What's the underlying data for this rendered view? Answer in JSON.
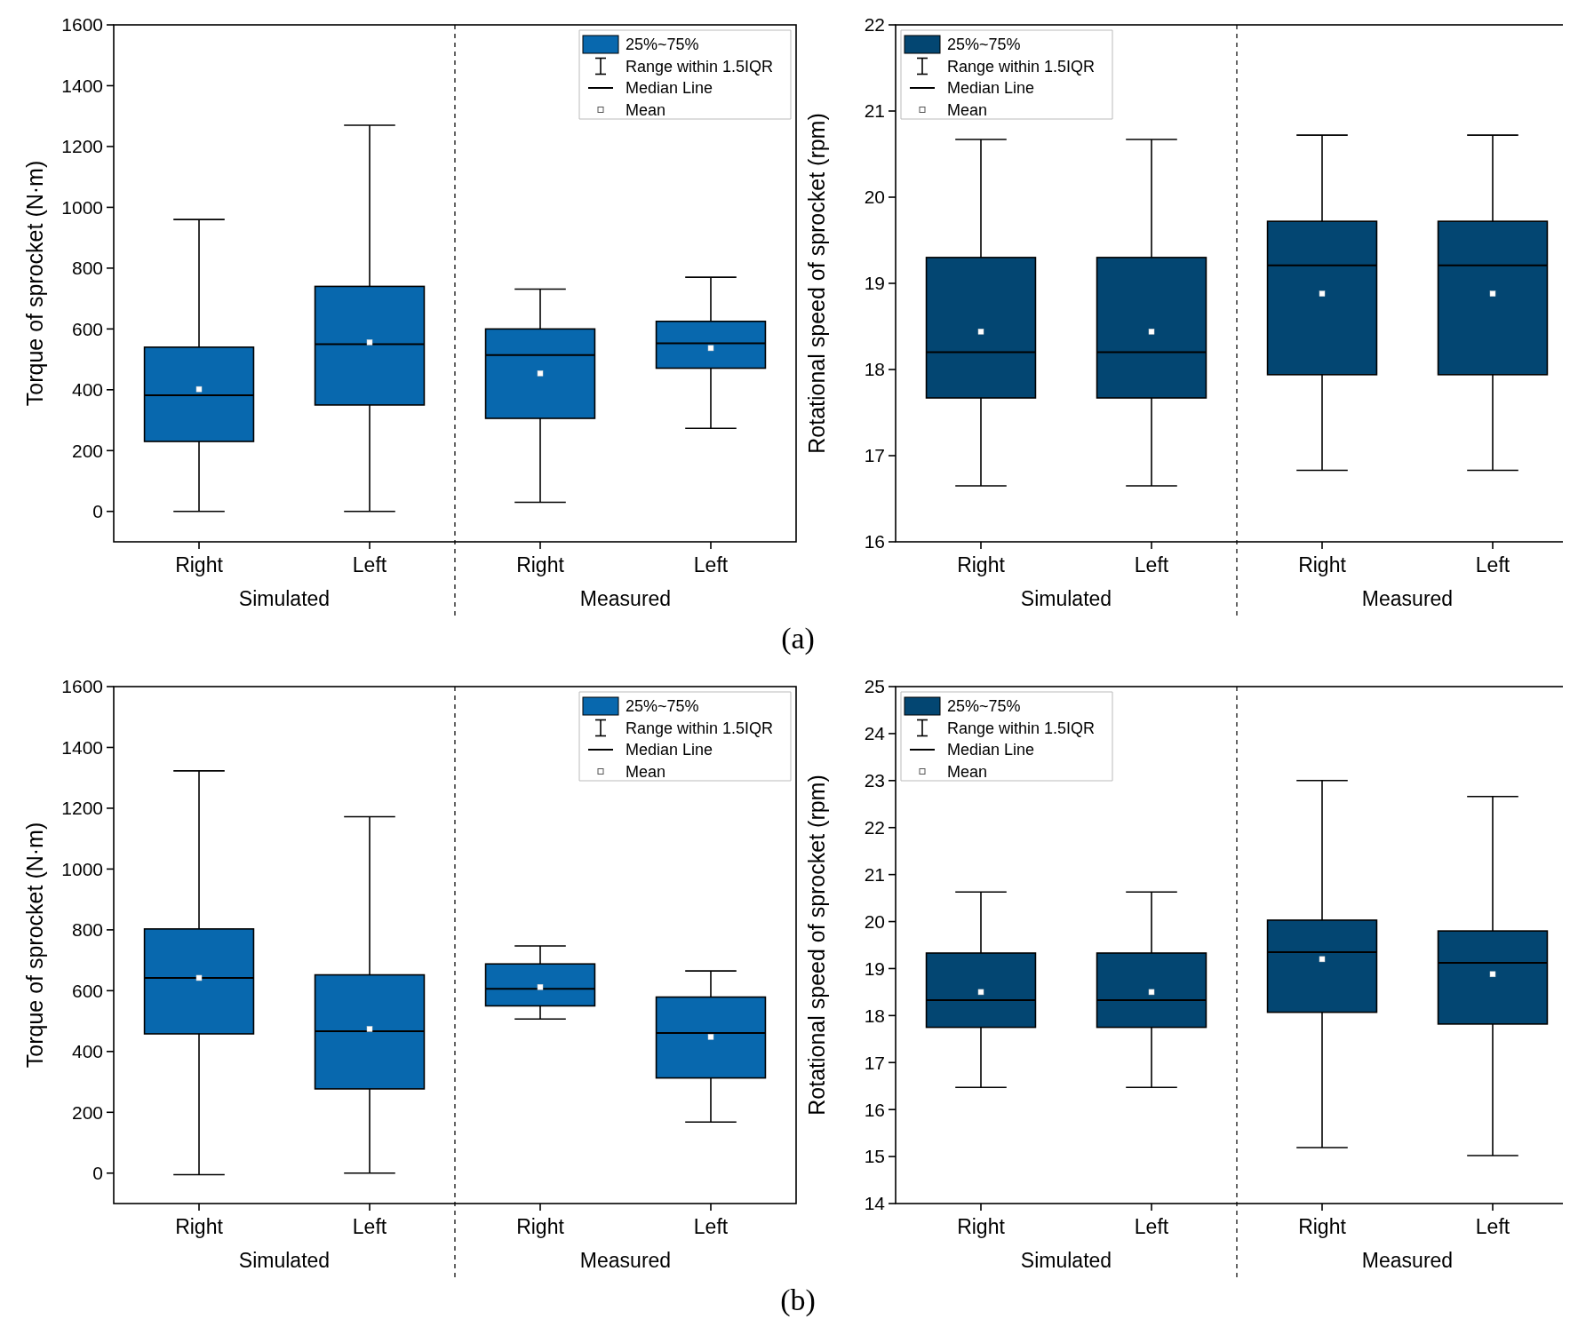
{
  "chart_data": [
    {
      "type": "box",
      "ylabel": "Torque of sprocket (N·m)",
      "categories": [
        "Right",
        "Left",
        "Right",
        "Left"
      ],
      "ylim": [
        -100,
        1600
      ],
      "yticks": [
        0,
        200,
        400,
        600,
        800,
        1000,
        1200,
        1400,
        1600
      ],
      "legend": "top right",
      "marker": "square",
      "annotations": [
        "Simulated",
        "Measured",
        "Range within 1.5IQR",
        "Median Line",
        "Mean"
      ],
      "series": [
        {
          "name": "25%~75%",
          "color": "#0868ae",
          "boxes": [
            {
              "low": 0,
              "q1": 230,
              "median": 382,
              "q3": 540,
              "high": 960,
              "mean": 402
            },
            {
              "low": 0,
              "q1": 350,
              "median": 550,
              "q3": 740,
              "high": 1270,
              "mean": 556
            },
            {
              "low": 30,
              "q1": 306,
              "median": 514,
              "q3": 600,
              "high": 731,
              "mean": 454
            },
            {
              "low": 273,
              "q1": 471,
              "median": 553,
              "q3": 625,
              "high": 770,
              "mean": 537
            }
          ]
        }
      ]
    },
    {
      "type": "box",
      "ylabel": "Rotational speed of sprocket (rpm)",
      "categories": [
        "Right",
        "Left",
        "Right",
        "Left"
      ],
      "ylim": [
        16,
        22
      ],
      "yticks": [
        16,
        17,
        18,
        19,
        20,
        21,
        22
      ],
      "legend": "top left",
      "marker": "square",
      "annotations": [
        "Simulated",
        "Measured",
        "Range within 1.5IQR",
        "Median Line",
        "Mean",
        "(a)"
      ],
      "series": [
        {
          "name": "25%~75%",
          "color": "#034672",
          "boxes": [
            {
              "low": 16.65,
              "q1": 17.67,
              "median": 18.2,
              "q3": 19.3,
              "high": 20.67,
              "mean": 18.44
            },
            {
              "low": 16.65,
              "q1": 17.67,
              "median": 18.2,
              "q3": 19.3,
              "high": 20.67,
              "mean": 18.44
            },
            {
              "low": 16.83,
              "q1": 17.94,
              "median": 19.21,
              "q3": 19.72,
              "high": 20.72,
              "mean": 18.88
            },
            {
              "low": 16.83,
              "q1": 17.94,
              "median": 19.21,
              "q3": 19.72,
              "high": 20.72,
              "mean": 18.88
            }
          ]
        }
      ]
    },
    {
      "type": "box",
      "ylabel": "Torque of sprocket (N·m)",
      "categories": [
        "Right",
        "Left",
        "Right",
        "Left"
      ],
      "ylim": [
        -100,
        1600
      ],
      "yticks": [
        0,
        200,
        400,
        600,
        800,
        1000,
        1200,
        1400,
        1600
      ],
      "legend": "top right",
      "marker": "square",
      "annotations": [
        "Simulated",
        "Measured",
        "Range within 1.5IQR",
        "Median Line",
        "Mean"
      ],
      "series": [
        {
          "name": "25%~75%",
          "color": "#0868ae",
          "boxes": [
            {
              "low": -5,
              "q1": 458,
              "median": 642,
              "q3": 803,
              "high": 1323,
              "mean": 642
            },
            {
              "low": 0,
              "q1": 277,
              "median": 467,
              "q3": 652,
              "high": 1172,
              "mean": 474
            },
            {
              "low": 507,
              "q1": 550,
              "median": 606,
              "q3": 688,
              "high": 747,
              "mean": 612
            },
            {
              "low": 168,
              "q1": 313,
              "median": 461,
              "q3": 579,
              "high": 665,
              "mean": 448
            }
          ]
        }
      ]
    },
    {
      "type": "box",
      "ylabel": "Rotational speed of sprocket (rpm)",
      "categories": [
        "Right",
        "Left",
        "Right",
        "Left"
      ],
      "ylim": [
        14,
        25
      ],
      "yticks": [
        14,
        15,
        16,
        17,
        18,
        19,
        20,
        21,
        22,
        23,
        24,
        25
      ],
      "legend": "top left",
      "marker": "square",
      "annotations": [
        "Simulated",
        "Measured",
        "Range within 1.5IQR",
        "Median Line",
        "Mean",
        "(b)"
      ],
      "series": [
        {
          "name": "25%~75%",
          "color": "#034672",
          "boxes": [
            {
              "low": 16.47,
              "q1": 17.75,
              "median": 18.33,
              "q3": 19.33,
              "high": 20.63,
              "mean": 18.5
            },
            {
              "low": 16.47,
              "q1": 17.75,
              "median": 18.33,
              "q3": 19.33,
              "high": 20.63,
              "mean": 18.5
            },
            {
              "low": 15.19,
              "q1": 18.07,
              "median": 19.35,
              "q3": 20.03,
              "high": 23.0,
              "mean": 19.2
            },
            {
              "low": 15.02,
              "q1": 17.82,
              "median": 19.12,
              "q3": 19.8,
              "high": 22.66,
              "mean": 18.88
            }
          ]
        }
      ]
    }
  ]
}
